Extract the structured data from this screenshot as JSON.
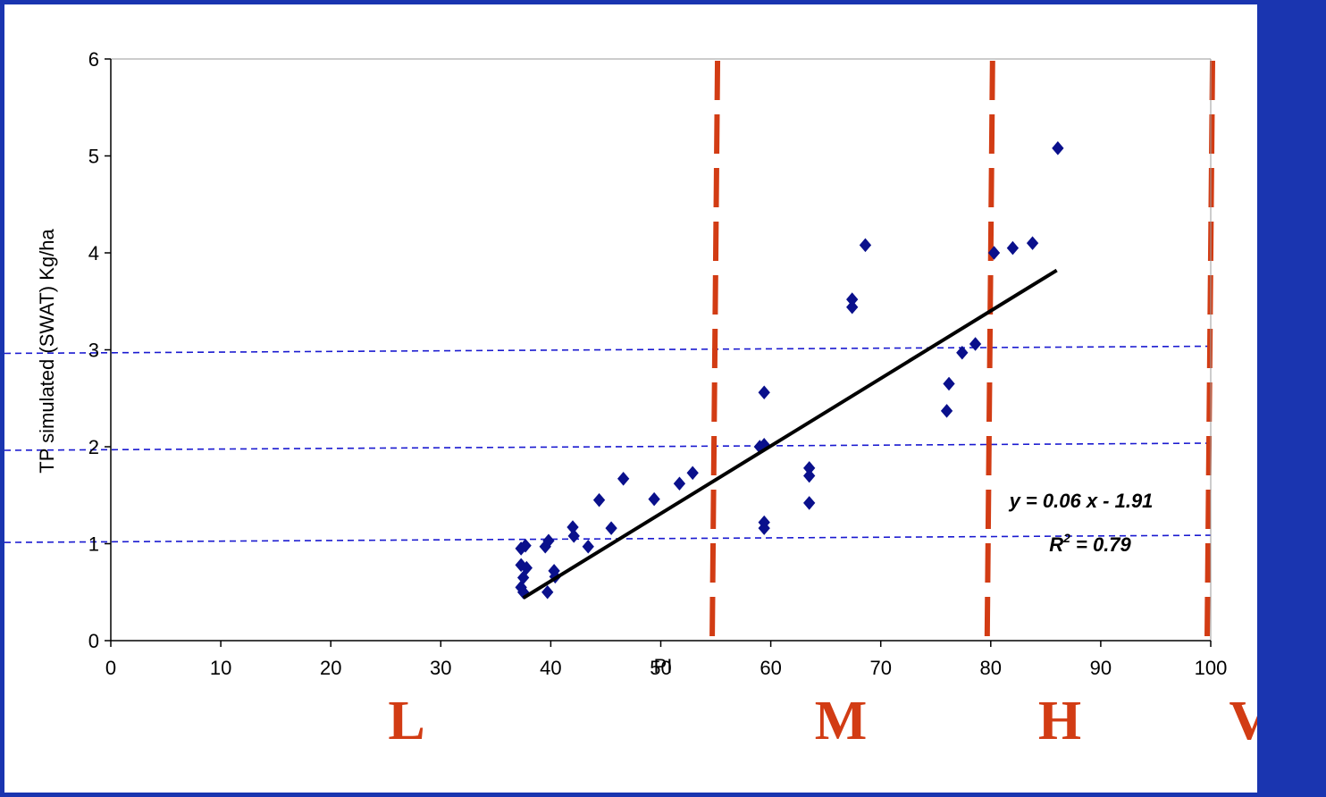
{
  "colors": {
    "background": "#1a35b0",
    "marker": "#0a108c",
    "fit_line": "#000000",
    "class_line": "#d23c14",
    "threshold_line": "#1a1ad0",
    "zone_label": "#d23c14"
  },
  "chart_data": {
    "type": "scatter",
    "title": "",
    "xlabel": "PI",
    "ylabel": "TP simulated (SWAT) Kg/ha",
    "xlim": [
      0,
      100
    ],
    "ylim": [
      0,
      6
    ],
    "xticks": [
      "0",
      "10",
      "20",
      "30",
      "40",
      "50",
      "60",
      "70",
      "80",
      "90",
      "100"
    ],
    "yticks": [
      "0",
      "1",
      "2",
      "3",
      "4",
      "5",
      "6"
    ],
    "grid": false,
    "legend": "none",
    "marker": "diamond",
    "points": [
      {
        "x": 37.3,
        "y": 0.95
      },
      {
        "x": 37.7,
        "y": 0.98
      },
      {
        "x": 37.3,
        "y": 0.78
      },
      {
        "x": 37.8,
        "y": 0.75
      },
      {
        "x": 37.5,
        "y": 0.65
      },
      {
        "x": 37.3,
        "y": 0.55
      },
      {
        "x": 37.5,
        "y": 0.5
      },
      {
        "x": 39.5,
        "y": 0.97
      },
      {
        "x": 39.8,
        "y": 1.03
      },
      {
        "x": 39.7,
        "y": 0.5
      },
      {
        "x": 40.3,
        "y": 0.72
      },
      {
        "x": 40.4,
        "y": 0.66
      },
      {
        "x": 42.0,
        "y": 1.17
      },
      {
        "x": 42.1,
        "y": 1.08
      },
      {
        "x": 43.4,
        "y": 0.97
      },
      {
        "x": 44.4,
        "y": 1.45
      },
      {
        "x": 45.5,
        "y": 1.16
      },
      {
        "x": 46.6,
        "y": 1.67
      },
      {
        "x": 49.4,
        "y": 1.46
      },
      {
        "x": 51.7,
        "y": 1.62
      },
      {
        "x": 52.9,
        "y": 1.73
      },
      {
        "x": 59.0,
        "y": 2.0
      },
      {
        "x": 59.4,
        "y": 2.02
      },
      {
        "x": 59.4,
        "y": 2.56
      },
      {
        "x": 59.4,
        "y": 1.22
      },
      {
        "x": 59.4,
        "y": 1.16
      },
      {
        "x": 63.5,
        "y": 1.78
      },
      {
        "x": 63.5,
        "y": 1.7
      },
      {
        "x": 63.5,
        "y": 1.42
      },
      {
        "x": 67.4,
        "y": 3.52
      },
      {
        "x": 67.4,
        "y": 3.44
      },
      {
        "x": 68.6,
        "y": 4.08
      },
      {
        "x": 76.0,
        "y": 2.37
      },
      {
        "x": 76.2,
        "y": 2.65
      },
      {
        "x": 77.4,
        "y": 2.97
      },
      {
        "x": 78.6,
        "y": 3.06
      },
      {
        "x": 80.3,
        "y": 4.0
      },
      {
        "x": 82.0,
        "y": 4.05
      },
      {
        "x": 83.8,
        "y": 4.1
      },
      {
        "x": 86.1,
        "y": 5.08
      }
    ],
    "trendline": {
      "x0": 37.5,
      "x1": 86.0,
      "equation": "y = 0.06 x - 1.91",
      "r2_label": "R",
      "r2_sup": "2",
      "r2_value": " = 0.79"
    },
    "class_boundaries": [
      55,
      80,
      100
    ],
    "thresholds": [
      1.05,
      2.0,
      3.0
    ],
    "zone_labels": [
      "L",
      "M",
      "H",
      "VH"
    ]
  }
}
